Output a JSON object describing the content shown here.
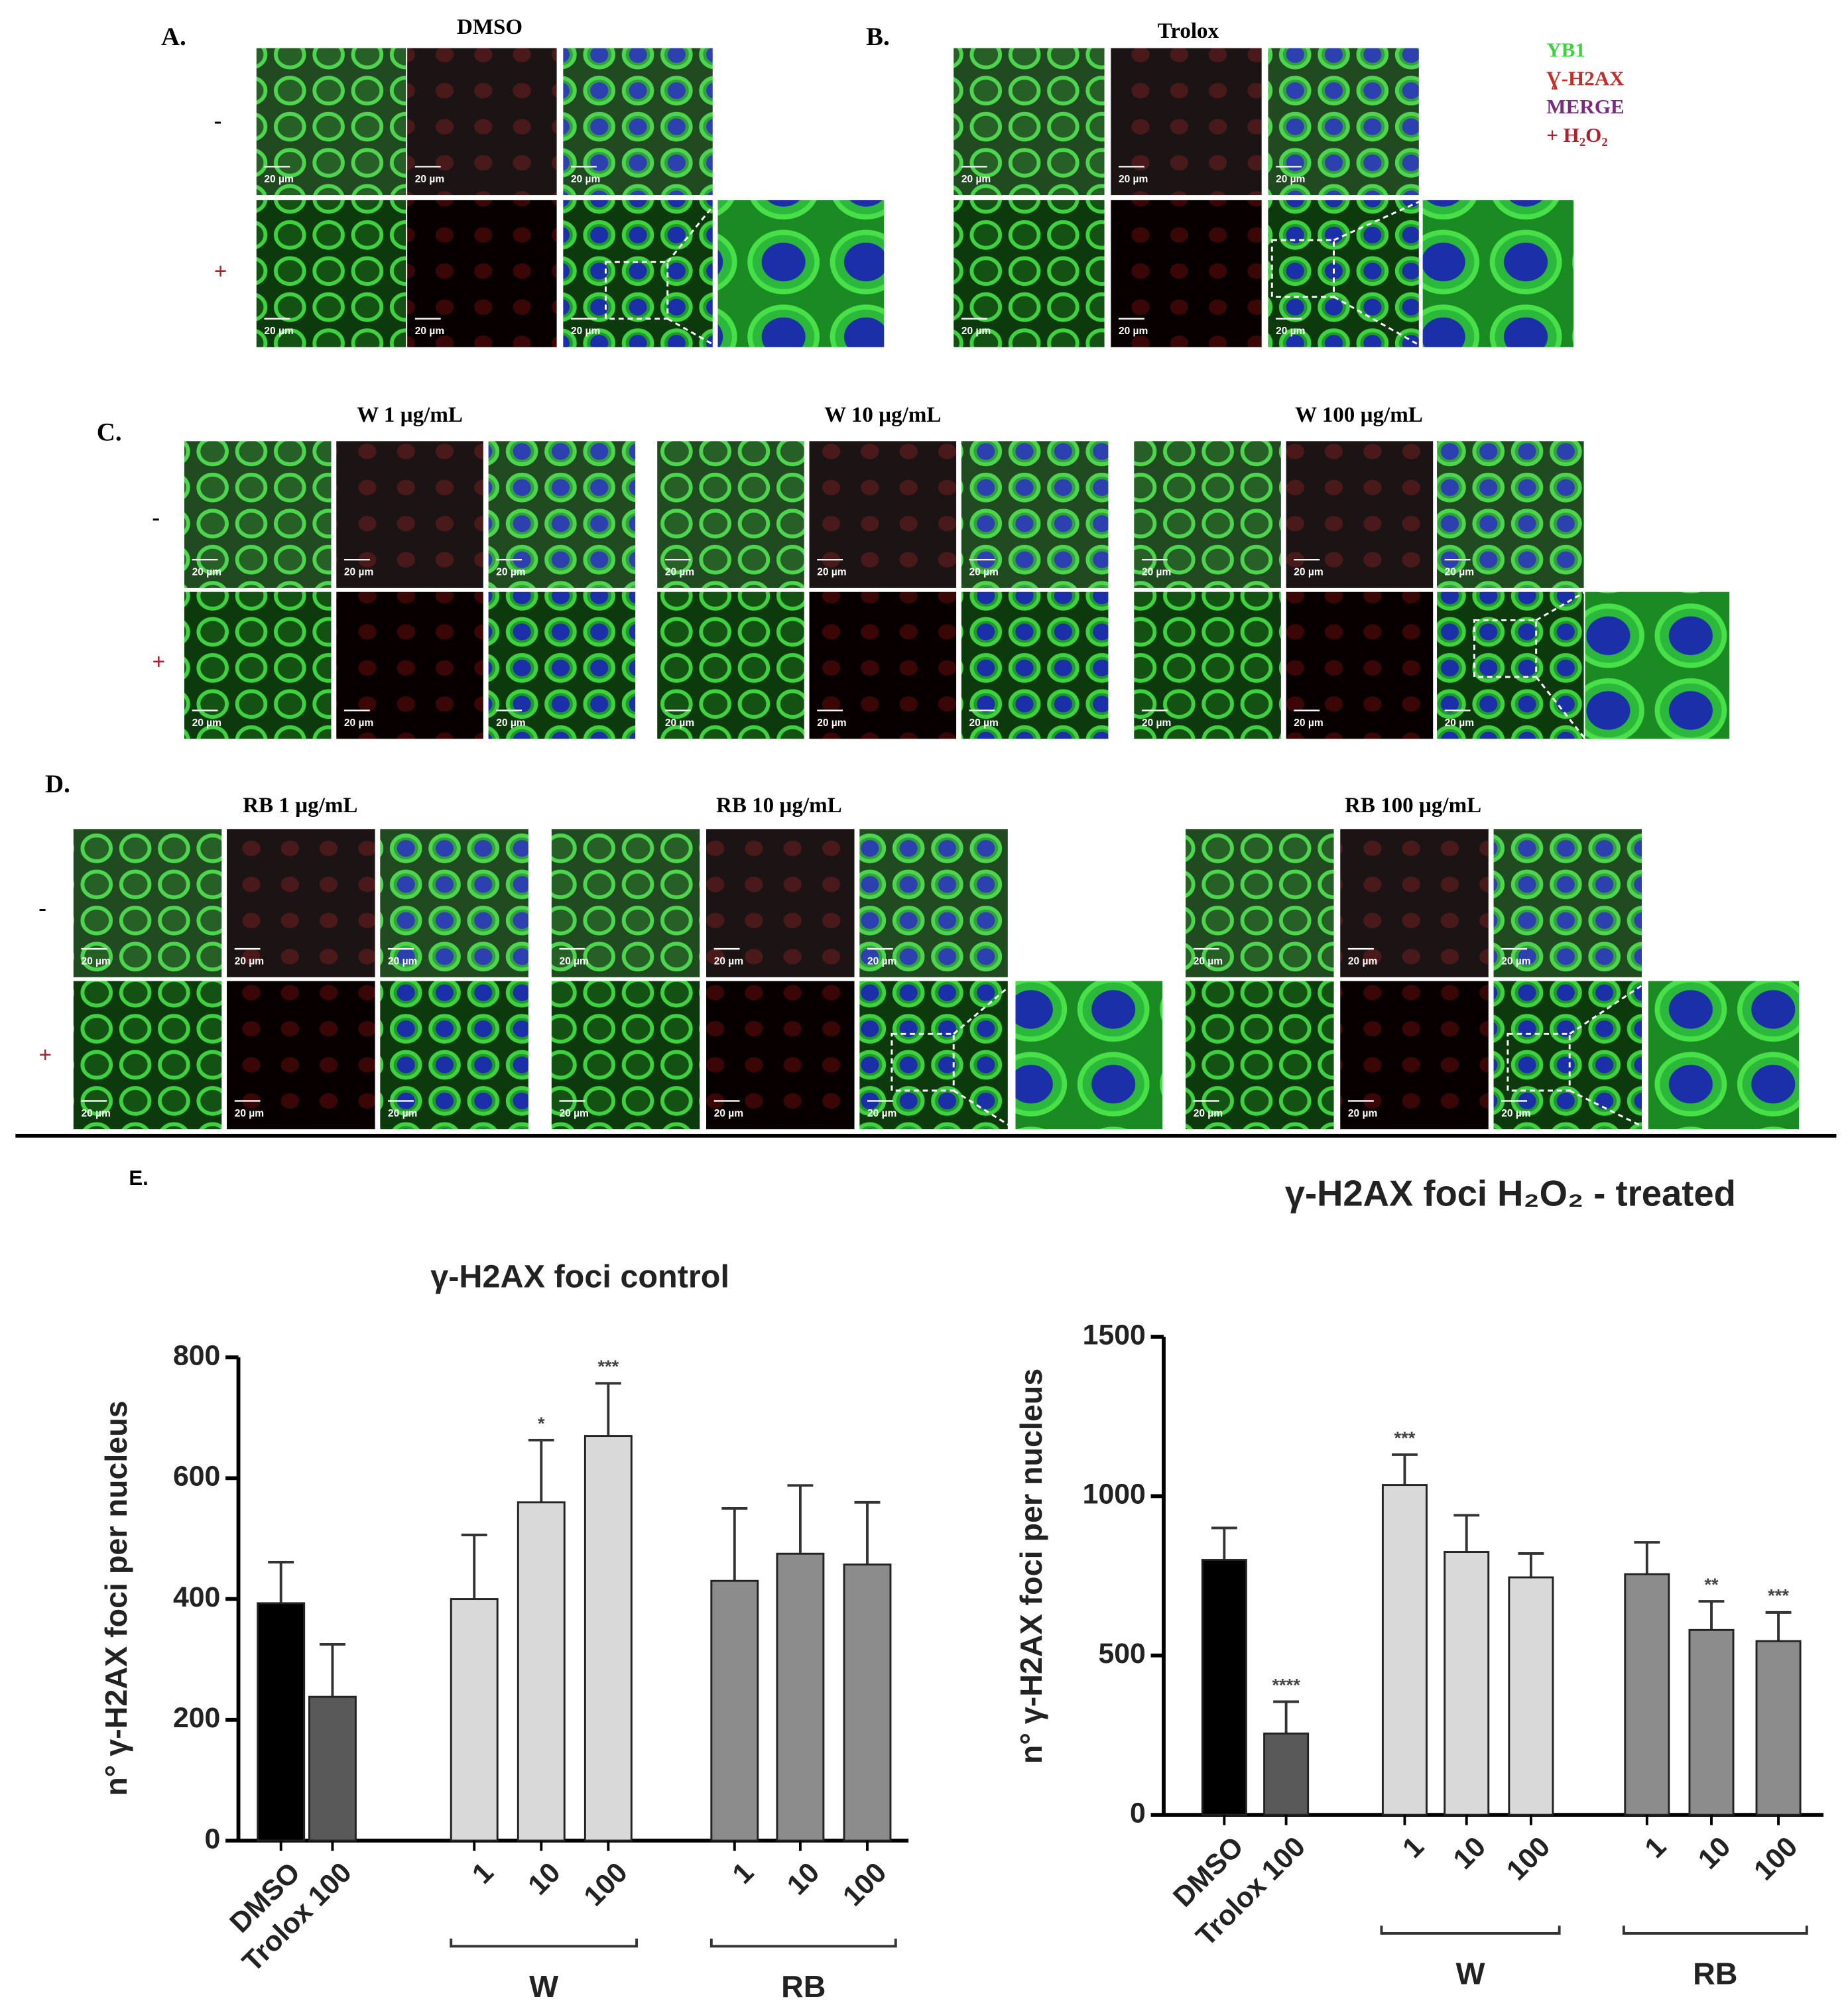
{
  "panels": [
    {
      "label": "A.",
      "title": "DMSO"
    },
    {
      "label": "B.",
      "title": "Trolox"
    },
    {
      "label": "C.",
      "groups": [
        "W 1 µg/mL",
        "W 10 µg/mL",
        "W 100 µg/mL"
      ]
    },
    {
      "label": "D.",
      "groups": [
        "RB 1 µg/mL",
        "RB 10 µg/mL",
        "RB 100 µg/mL"
      ]
    },
    {
      "label": "E."
    }
  ],
  "row_labels": [
    "-",
    "+"
  ],
  "scale_bar_label": "20 µm",
  "legend": [
    "YB1",
    "Ɣ-H2AX",
    "MERGE",
    "+ H₂O₂"
  ],
  "chart_data": [
    {
      "type": "bar",
      "title": "γ-H2AX foci control",
      "y_label": "n° γ-H2AX foci per nucleus",
      "categories": [
        "DMSO",
        "Trolox 100",
        "1",
        "10",
        "100",
        "1",
        "10",
        "100"
      ],
      "group": [
        null,
        null,
        "W",
        "W",
        "W",
        "RB",
        "RB",
        "RB"
      ],
      "values": [
        393,
        238,
        400,
        560,
        670,
        430,
        475,
        457
      ],
      "errors": [
        68,
        87,
        106,
        103,
        87,
        120,
        113,
        103
      ],
      "significance": [
        null,
        null,
        null,
        "*",
        "***",
        null,
        null,
        null
      ],
      "colors": [
        "#000000",
        "#595959",
        "#d9d9d9",
        "#d9d9d9",
        "#d9d9d9",
        "#8c8c8c",
        "#8c8c8c",
        "#8c8c8c"
      ],
      "ylim": [
        0,
        800
      ],
      "yticks": [
        0,
        200,
        400,
        600,
        800
      ]
    },
    {
      "type": "bar",
      "title": "γ-H2AX foci H₂O₂ - treated",
      "y_label": "n° γ-H2AX foci per nucleus",
      "categories": [
        "DMSO",
        "Trolox 100",
        "1",
        "10",
        "100",
        "1",
        "10",
        "100"
      ],
      "group": [
        null,
        null,
        "W",
        "W",
        "W",
        "RB",
        "RB",
        "RB"
      ],
      "values": [
        800,
        255,
        1035,
        825,
        745,
        755,
        580,
        545
      ],
      "errors": [
        100,
        100,
        95,
        115,
        75,
        100,
        90,
        90
      ],
      "significance": [
        null,
        "****",
        "***",
        null,
        null,
        null,
        "**",
        "***"
      ],
      "colors": [
        "#000000",
        "#595959",
        "#d9d9d9",
        "#d9d9d9",
        "#d9d9d9",
        "#8c8c8c",
        "#8c8c8c",
        "#8c8c8c"
      ],
      "ylim": [
        0,
        1500
      ],
      "yticks": [
        0,
        500,
        1000,
        1500
      ]
    }
  ]
}
